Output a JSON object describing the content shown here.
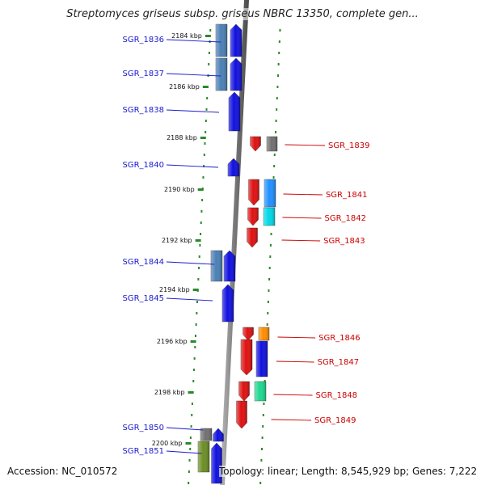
{
  "title": "Streptomyces griseus subsp. griseus NBRC 13350, complete gen...",
  "footer": {
    "accession": "Accession: NC_010572",
    "stats": "Topology: linear; Length: 8,545,929 bp; Genes: 7,222"
  },
  "colors": {
    "forward": "#1010e0",
    "reverse": "#e01010",
    "steelblue": "#4a7fb5",
    "skyblue": "#1e90ff",
    "cyan": "#00d8e8",
    "grey": "#707070",
    "orange": "#ff8c00",
    "seagreen": "#1ed890",
    "olive": "#6b8e23",
    "axis": "#808080",
    "scale": "#2a8a2a"
  },
  "scale_ticks": [
    {
      "label": "2184 kbp",
      "kbp": 2184
    },
    {
      "label": "2186 kbp",
      "kbp": 2186
    },
    {
      "label": "2188 kbp",
      "kbp": 2188
    },
    {
      "label": "2190 kbp",
      "kbp": 2190
    },
    {
      "label": "2192 kbp",
      "kbp": 2192
    },
    {
      "label": "2194 kbp",
      "kbp": 2194
    },
    {
      "label": "2196 kbp",
      "kbp": 2196
    },
    {
      "label": "2198 kbp",
      "kbp": 2198
    },
    {
      "label": "2200 kbp",
      "kbp": 2200
    }
  ],
  "genes": [
    {
      "label": "SGR_1836",
      "strand": "+",
      "color": "forward"
    },
    {
      "label": "SGR_1837",
      "strand": "+",
      "color": "forward"
    },
    {
      "label": "SGR_1838",
      "strand": "+",
      "color": "forward"
    },
    {
      "label": "SGR_1839",
      "strand": "-",
      "color": "reverse"
    },
    {
      "label": "SGR_1840",
      "strand": "+",
      "color": "forward"
    },
    {
      "label": "SGR_1841",
      "strand": "-",
      "color": "reverse"
    },
    {
      "label": "SGR_1842",
      "strand": "-",
      "color": "reverse"
    },
    {
      "label": "SGR_1843",
      "strand": "-",
      "color": "reverse"
    },
    {
      "label": "SGR_1844",
      "strand": "+",
      "color": "forward"
    },
    {
      "label": "SGR_1845",
      "strand": "+",
      "color": "forward"
    },
    {
      "label": "SGR_1846",
      "strand": "-",
      "color": "reverse"
    },
    {
      "label": "SGR_1847",
      "strand": "-",
      "color": "reverse"
    },
    {
      "label": "SGR_1848",
      "strand": "-",
      "color": "reverse"
    },
    {
      "label": "SGR_1849",
      "strand": "-",
      "color": "reverse"
    },
    {
      "label": "SGR_1850",
      "strand": "+",
      "color": "forward"
    },
    {
      "label": "SGR_1851",
      "strand": "+",
      "color": "forward"
    }
  ]
}
